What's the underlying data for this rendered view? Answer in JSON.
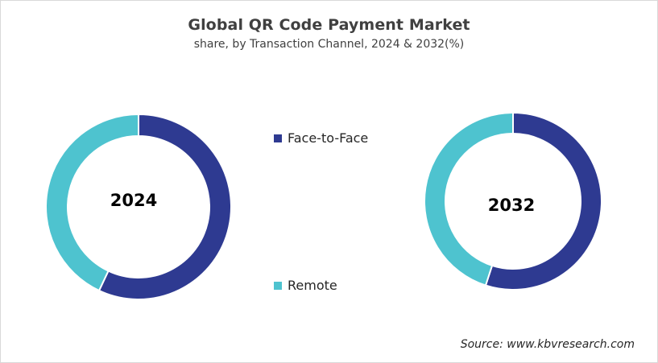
{
  "header": {
    "title": "Global QR Code Payment Market",
    "subtitle": "share, by Transaction Channel, 2024 & 2032(%)"
  },
  "legend": {
    "items": [
      {
        "label": "Face-to-Face",
        "color": "#2e3a91"
      },
      {
        "label": "Remote",
        "color": "#4ec3cf"
      }
    ]
  },
  "donuts": [
    {
      "year_label": "2024"
    },
    {
      "year_label": "2032"
    }
  ],
  "source": "Source: www.kbvresearch.com",
  "chart_data": [
    {
      "type": "pie",
      "subtype": "donut",
      "title": "Global QR Code Payment Market",
      "subtitle": "share, by Transaction Channel, 2024 & 2032(%)",
      "center_label": "2024",
      "categories": [
        "Face-to-Face",
        "Remote"
      ],
      "values": [
        57,
        43
      ],
      "colors": [
        "#2e3a91",
        "#4ec3cf"
      ],
      "legend_position": "center"
    },
    {
      "type": "pie",
      "subtype": "donut",
      "title": "Global QR Code Payment Market",
      "subtitle": "share, by Transaction Channel, 2024 & 2032(%)",
      "center_label": "2032",
      "categories": [
        "Face-to-Face",
        "Remote"
      ],
      "values": [
        55,
        45
      ],
      "colors": [
        "#2e3a91",
        "#4ec3cf"
      ],
      "legend_position": "center"
    }
  ]
}
